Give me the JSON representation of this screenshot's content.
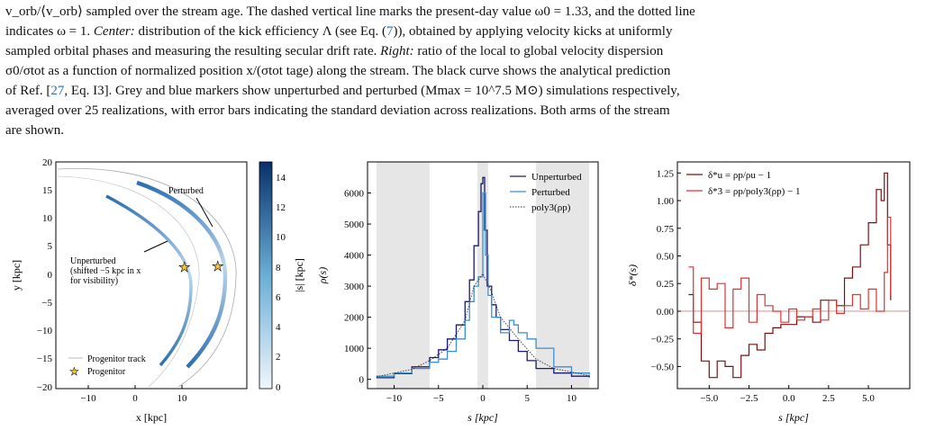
{
  "caption": {
    "line1_text": "v_orb/⟨v_orb⟩ sampled over the stream age. The dashed vertical line marks the present-day value ω0 = 1.33, and the dotted line",
    "line2_text_a": "indicates ω = 1.",
    "line2_center_label": "Center:",
    "line2_text_b": "distribution of the kick efficiency Λ (see Eq. (",
    "line2_eq_ref": "7",
    "line2_text_c": ")), obtained by applying velocity kicks at uniformly",
    "line3_text_a": "sampled orbital phases and measuring the resulting secular drift rate.",
    "line3_right_label": "Right:",
    "line3_text_b": "ratio of the local to global velocity dispersion",
    "line4_text": "σ0/σtot as a function of normalized position x/(σtot tage) along the stream. The black curve shows the analytical prediction",
    "line5_text_a": "of Ref. [",
    "line5_ref": "27",
    "line5_text_b": ", Eq. I3]. Grey and blue markers show unperturbed and perturbed (Mmax = 10^7.5 M⊙) simulations respectively,",
    "line6_text": "averaged over 25 realizations, with error bars indicating the standard deviation across realizations. Both arms of the stream",
    "line7_text": "are shown."
  },
  "panel_left": {
    "xlabel": "x [kpc]",
    "ylabel": "y [kpc]",
    "xticks": [
      "−10",
      "0",
      "10"
    ],
    "yticks": [
      "20",
      "15",
      "10",
      "5",
      "0",
      "−5",
      "−10",
      "−15",
      "−20"
    ],
    "annotation_perturbed": "Perturbed",
    "annotation_unperturbed_1": "Unperturbed",
    "annotation_unperturbed_2": "(shifted −5 kpc in x",
    "annotation_unperturbed_3": "for visibility)",
    "legend_track": "Progenitor track",
    "legend_progenitor": "Progenitor",
    "colorbar_label": "|s| [kpc]",
    "colorbar_ticks": [
      "14",
      "12",
      "10",
      "8",
      "6",
      "4",
      "2",
      "0"
    ]
  },
  "chart_data": [
    {
      "type": "line",
      "title": "",
      "xlabel": "s [kpc]",
      "ylabel": "ρ(s)",
      "xlim": [
        -13,
        13
      ],
      "ylim": [
        -300,
        7000
      ],
      "xticks": [
        "−10",
        "−5",
        "0",
        "5",
        "10"
      ],
      "yticks": [
        "0",
        "1000",
        "2000",
        "3000",
        "4000",
        "5000",
        "6000"
      ],
      "shaded_regions": [
        [
          -12,
          -6
        ],
        [
          -0.6,
          0.6
        ],
        [
          6,
          12
        ]
      ],
      "legend_placement": "top-right",
      "series": [
        {
          "name": "Unperturbed",
          "color": "#1a1a6e",
          "x": [
            -12,
            -10,
            -8,
            -6,
            -5,
            -4,
            -3,
            -2,
            -1.5,
            -1,
            -0.5,
            -0.2,
            0,
            0.2,
            0.5,
            1,
            1.5,
            2,
            3,
            4,
            5,
            6,
            8,
            10,
            12
          ],
          "y": [
            50,
            180,
            400,
            700,
            950,
            1300,
            1750,
            2500,
            3200,
            4300,
            5400,
            6300,
            6500,
            4800,
            3000,
            2400,
            2000,
            1600,
            1250,
            900,
            600,
            350,
            200,
            100,
            60
          ]
        },
        {
          "name": "Perturbed",
          "color": "#3b8fd0",
          "x": [
            -12,
            -10,
            -8,
            -6,
            -5,
            -4,
            -3,
            -2,
            -1.5,
            -1,
            -0.5,
            0,
            0.3,
            0.6,
            1,
            2,
            3,
            3.5,
            4,
            5,
            6,
            8,
            10,
            12
          ],
          "y": [
            100,
            200,
            350,
            550,
            650,
            900,
            1300,
            1900,
            2500,
            3000,
            3300,
            6000,
            4000,
            2700,
            2000,
            1500,
            1900,
            1750,
            1500,
            1300,
            1000,
            400,
            200,
            150
          ]
        },
        {
          "name": "poly3(ρp)",
          "color": "#333333",
          "x": [
            -12,
            -8,
            -6,
            -4,
            -2,
            -1,
            0,
            1,
            2,
            4,
            6,
            8,
            12
          ],
          "y": [
            80,
            320,
            600,
            1000,
            1900,
            3000,
            3400,
            2800,
            2000,
            1300,
            650,
            350,
            120
          ]
        }
      ]
    },
    {
      "type": "line",
      "title": "",
      "xlabel": "s [kpc]",
      "ylabel": "δ*(s)",
      "xlim": [
        -7,
        7.6
      ],
      "ylim": [
        -0.7,
        1.35
      ],
      "xticks": [
        "−5.0",
        "−2.5",
        "0.0",
        "2.5",
        "5.0"
      ],
      "yticks": [
        "1.25",
        "1.00",
        "0.75",
        "0.50",
        "0.25",
        "0.00",
        "−0.25",
        "−0.50"
      ],
      "legend_placement": "top-left",
      "series": [
        {
          "name": "δ*u = ρp/ρu − 1",
          "color": "#7a1010",
          "x": [
            -6.3,
            -6,
            -5.5,
            -5,
            -4.5,
            -4,
            -3.5,
            -3,
            -2.5,
            -2,
            -1.5,
            -1,
            -0.5,
            0.5,
            1,
            1.5,
            2,
            2.5,
            3,
            3.5,
            4,
            4.5,
            5,
            5.5,
            5.8,
            6,
            6.2,
            6.4
          ],
          "y": [
            0.15,
            -0.1,
            -0.45,
            -0.6,
            -0.45,
            -0.5,
            -0.6,
            -0.4,
            -0.3,
            -0.35,
            -0.2,
            -0.15,
            -0.12,
            -0.05,
            -0.05,
            -0.1,
            0.1,
            0.1,
            0.05,
            0.3,
            0.4,
            0.6,
            0.8,
            1.1,
            1.0,
            1.25,
            0.6,
            0.1
          ]
        },
        {
          "name": "δ*3 = ρp/poly3(ρp) − 1",
          "color": "#e03030",
          "x": [
            -6.3,
            -6,
            -5.5,
            -5,
            -4.5,
            -4,
            -3.5,
            -3,
            -2.5,
            -2,
            -1.5,
            -1,
            -0.5,
            0,
            0.5,
            1,
            1.5,
            2,
            2.5,
            3,
            3.5,
            4,
            4.5,
            5,
            5.5,
            6,
            6.2,
            6.4
          ],
          "y": [
            0.4,
            -0.2,
            0.3,
            0.2,
            0.25,
            -0.15,
            0.2,
            0.3,
            -0.1,
            0.15,
            0.05,
            0.0,
            -0.1,
            0.02,
            -0.08,
            -0.05,
            0.02,
            -0.08,
            0.1,
            -0.02,
            0.05,
            0.15,
            0.02,
            0.2,
            0.0,
            0.35,
            0.85,
            0.15
          ]
        }
      ],
      "reference_line": {
        "y": 0.0,
        "color": "#d08080"
      }
    }
  ]
}
